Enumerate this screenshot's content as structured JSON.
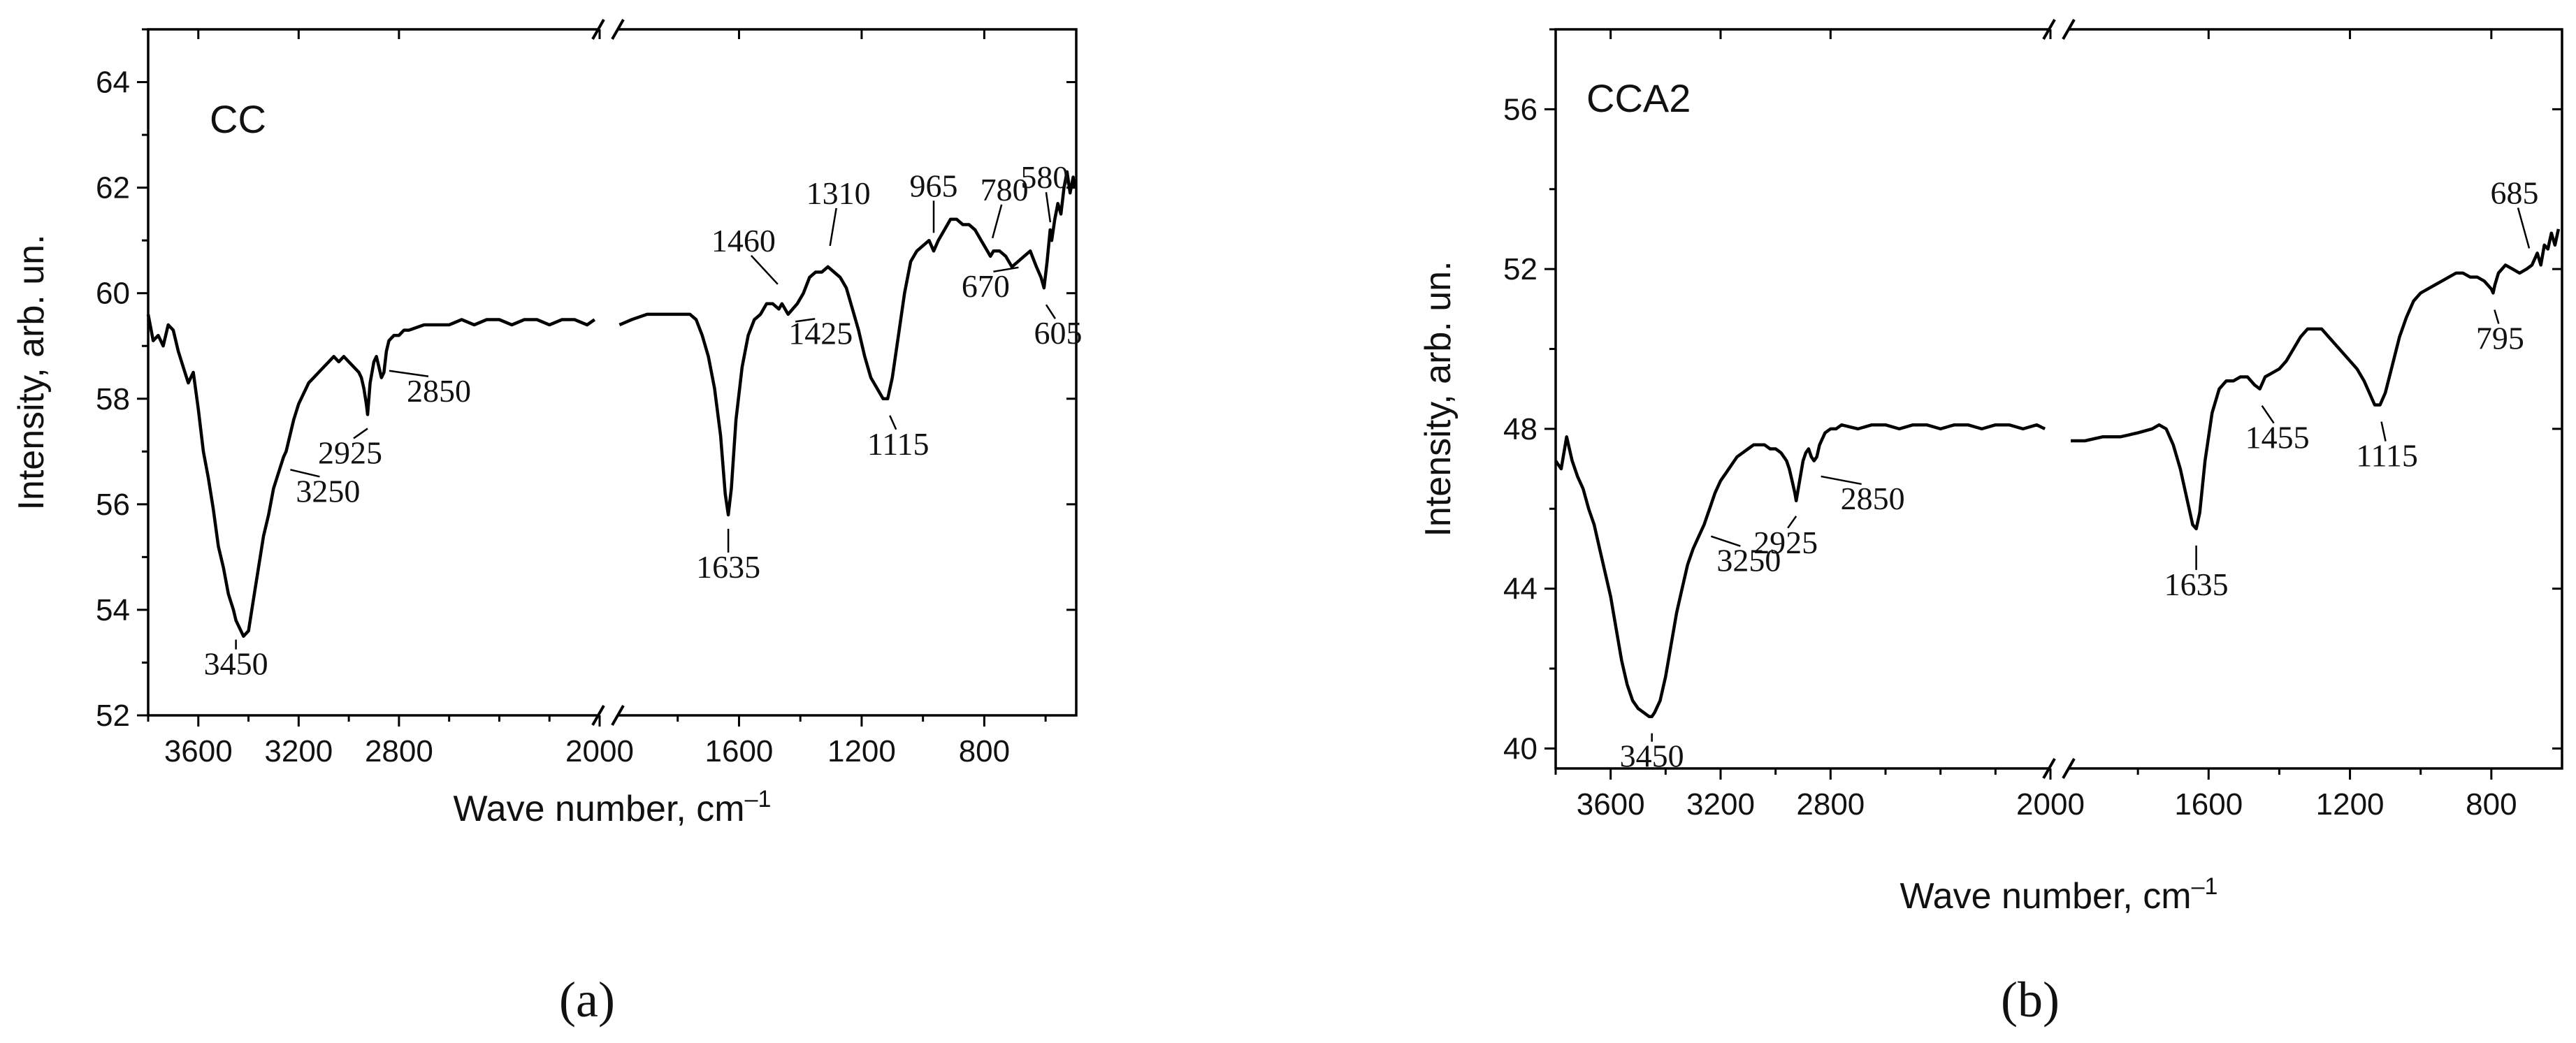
{
  "chart_data": [
    {
      "type": "line",
      "panel_name": "CC",
      "caption": "(a)",
      "xlabel": "Wave number, cm",
      "xlabel_sup": "–1",
      "ylabel": "Intensity, arb. un.",
      "ylim": [
        52,
        65
      ],
      "y_ticks": [
        52,
        54,
        56,
        58,
        60,
        62,
        64
      ],
      "x_axis_broken": true,
      "x_segment_left": {
        "xlim": [
          3800,
          2000
        ],
        "ticks": [
          3600,
          3200,
          2800,
          2000
        ]
      },
      "x_segment_right": {
        "xlim": [
          2000,
          500
        ],
        "ticks": [
          1600,
          1200,
          800
        ]
      },
      "series": [
        {
          "segment": "left",
          "x": [
            3800,
            3780,
            3760,
            3740,
            3720,
            3700,
            3680,
            3660,
            3640,
            3620,
            3600,
            3580,
            3560,
            3540,
            3520,
            3500,
            3480,
            3460,
            3450,
            3440,
            3420,
            3400,
            3380,
            3360,
            3340,
            3320,
            3300,
            3280,
            3260,
            3250,
            3240,
            3220,
            3200,
            3180,
            3160,
            3140,
            3120,
            3100,
            3080,
            3060,
            3040,
            3020,
            3000,
            2980,
            2960,
            2950,
            2940,
            2930,
            2925,
            2915,
            2900,
            2890,
            2880,
            2870,
            2860,
            2850,
            2840,
            2820,
            2800,
            2780,
            2760,
            2700,
            2650,
            2600,
            2550,
            2500,
            2450,
            2400,
            2350,
            2300,
            2250,
            2200,
            2150,
            2100,
            2050,
            2020
          ],
          "y": [
            59.6,
            59.1,
            59.2,
            59.0,
            59.4,
            59.3,
            58.9,
            58.6,
            58.3,
            58.5,
            57.8,
            57.0,
            56.5,
            55.9,
            55.2,
            54.8,
            54.3,
            54.0,
            53.8,
            53.7,
            53.5,
            53.6,
            54.2,
            54.8,
            55.4,
            55.8,
            56.3,
            56.6,
            56.9,
            57.0,
            57.2,
            57.6,
            57.9,
            58.1,
            58.3,
            58.4,
            58.5,
            58.6,
            58.7,
            58.8,
            58.7,
            58.8,
            58.7,
            58.6,
            58.5,
            58.4,
            58.2,
            57.9,
            57.7,
            58.3,
            58.7,
            58.8,
            58.6,
            58.4,
            58.5,
            58.9,
            59.1,
            59.2,
            59.2,
            59.3,
            59.3,
            59.4,
            59.4,
            59.4,
            59.5,
            59.4,
            59.5,
            59.5,
            59.4,
            59.5,
            59.5,
            59.4,
            59.5,
            59.5,
            59.4,
            59.5
          ]
        },
        {
          "segment": "right",
          "x": [
            1990,
            1950,
            1900,
            1850,
            1800,
            1760,
            1740,
            1720,
            1700,
            1680,
            1660,
            1645,
            1635,
            1625,
            1610,
            1590,
            1570,
            1550,
            1530,
            1510,
            1490,
            1470,
            1460,
            1440,
            1425,
            1410,
            1390,
            1370,
            1350,
            1330,
            1310,
            1290,
            1270,
            1250,
            1230,
            1210,
            1190,
            1170,
            1150,
            1130,
            1115,
            1100,
            1080,
            1060,
            1040,
            1020,
            1000,
            980,
            965,
            950,
            930,
            910,
            890,
            870,
            850,
            830,
            810,
            790,
            780,
            770,
            750,
            730,
            710,
            690,
            670,
            650,
            630,
            615,
            605,
            595,
            585,
            580,
            570,
            560,
            550,
            540,
            530,
            520,
            510,
            505
          ],
          "y": [
            59.4,
            59.5,
            59.6,
            59.6,
            59.6,
            59.6,
            59.5,
            59.2,
            58.8,
            58.2,
            57.3,
            56.2,
            55.8,
            56.3,
            57.6,
            58.6,
            59.2,
            59.5,
            59.6,
            59.8,
            59.8,
            59.7,
            59.8,
            59.6,
            59.7,
            59.8,
            60.0,
            60.3,
            60.4,
            60.4,
            60.5,
            60.4,
            60.3,
            60.1,
            59.7,
            59.3,
            58.8,
            58.4,
            58.2,
            58.0,
            58.0,
            58.4,
            59.2,
            60.0,
            60.6,
            60.8,
            60.9,
            61.0,
            60.8,
            61.0,
            61.2,
            61.4,
            61.4,
            61.3,
            61.3,
            61.2,
            61.0,
            60.8,
            60.7,
            60.8,
            60.8,
            60.7,
            60.5,
            60.6,
            60.7,
            60.8,
            60.5,
            60.3,
            60.1,
            60.6,
            61.2,
            61.0,
            61.4,
            61.7,
            61.5,
            62.0,
            62.3,
            61.9,
            62.2,
            62.0
          ]
        }
      ],
      "annotations": [
        {
          "text": "3450",
          "x": 3450,
          "y": 53.7
        },
        {
          "text": "3250",
          "x": 3250,
          "y": 57.0
        },
        {
          "text": "2925",
          "x": 2925,
          "y": 57.7
        },
        {
          "text": "2850",
          "x": 2850,
          "y": 58.9
        },
        {
          "text": "1635",
          "x": 1635,
          "y": 55.8
        },
        {
          "text": "1460",
          "x": 1460,
          "y": 59.8
        },
        {
          "text": "1425",
          "x": 1425,
          "y": 59.7
        },
        {
          "text": "1310",
          "x": 1310,
          "y": 60.5
        },
        {
          "text": "1115",
          "x": 1115,
          "y": 58.0
        },
        {
          "text": "965",
          "x": 965,
          "y": 60.8
        },
        {
          "text": "780",
          "x": 780,
          "y": 60.7
        },
        {
          "text": "670",
          "x": 670,
          "y": 60.7
        },
        {
          "text": "605",
          "x": 605,
          "y": 60.1
        },
        {
          "text": "580",
          "x": 580,
          "y": 61.0
        }
      ]
    },
    {
      "type": "line",
      "panel_name": "CCA2",
      "caption": "(b)",
      "xlabel": "Wave number, cm",
      "xlabel_sup": "–1",
      "ylabel": "Intensity, arb. un.",
      "ylim": [
        39.5,
        58
      ],
      "y_ticks": [
        40,
        44,
        48,
        52,
        56
      ],
      "x_axis_broken": true,
      "x_segment_left": {
        "xlim": [
          3800,
          2000
        ],
        "ticks": [
          3600,
          3200,
          2800,
          2000
        ]
      },
      "x_segment_right": {
        "xlim": [
          2000,
          600
        ],
        "ticks": [
          1600,
          1200,
          800
        ]
      },
      "series": [
        {
          "segment": "left",
          "x": [
            3800,
            3780,
            3760,
            3740,
            3720,
            3700,
            3680,
            3660,
            3640,
            3620,
            3600,
            3580,
            3560,
            3540,
            3520,
            3500,
            3480,
            3460,
            3450,
            3440,
            3420,
            3400,
            3380,
            3360,
            3340,
            3320,
            3300,
            3280,
            3260,
            3250,
            3240,
            3220,
            3200,
            3180,
            3160,
            3140,
            3120,
            3100,
            3080,
            3060,
            3040,
            3020,
            3000,
            2980,
            2960,
            2950,
            2940,
            2930,
            2925,
            2915,
            2900,
            2890,
            2880,
            2870,
            2860,
            2850,
            2840,
            2820,
            2800,
            2780,
            2760,
            2700,
            2650,
            2600,
            2550,
            2500,
            2450,
            2400,
            2350,
            2300,
            2250,
            2200,
            2150,
            2100,
            2050,
            2020
          ],
          "y": [
            47.2,
            47.0,
            47.8,
            47.2,
            46.8,
            46.5,
            46.0,
            45.6,
            45.0,
            44.4,
            43.8,
            43.0,
            42.2,
            41.6,
            41.2,
            41.0,
            40.9,
            40.8,
            40.8,
            40.9,
            41.2,
            41.8,
            42.6,
            43.4,
            44.0,
            44.6,
            45.0,
            45.3,
            45.6,
            45.8,
            46.0,
            46.4,
            46.7,
            46.9,
            47.1,
            47.3,
            47.4,
            47.5,
            47.6,
            47.6,
            47.6,
            47.5,
            47.5,
            47.4,
            47.2,
            47.0,
            46.7,
            46.4,
            46.2,
            46.6,
            47.2,
            47.4,
            47.5,
            47.3,
            47.2,
            47.3,
            47.6,
            47.9,
            48.0,
            48.0,
            48.1,
            48.0,
            48.1,
            48.1,
            48.0,
            48.1,
            48.1,
            48.0,
            48.1,
            48.1,
            48.0,
            48.1,
            48.1,
            48.0,
            48.1,
            48.0
          ]
        },
        {
          "segment": "right",
          "x": [
            1990,
            1950,
            1900,
            1850,
            1800,
            1760,
            1740,
            1720,
            1700,
            1680,
            1660,
            1645,
            1635,
            1625,
            1610,
            1590,
            1570,
            1550,
            1530,
            1510,
            1490,
            1470,
            1455,
            1440,
            1420,
            1400,
            1380,
            1360,
            1340,
            1320,
            1300,
            1280,
            1260,
            1240,
            1220,
            1200,
            1180,
            1160,
            1140,
            1130,
            1115,
            1100,
            1080,
            1060,
            1040,
            1020,
            1000,
            980,
            960,
            940,
            920,
            900,
            880,
            860,
            840,
            820,
            800,
            795,
            790,
            780,
            760,
            740,
            720,
            700,
            685,
            670,
            660,
            650,
            640,
            630,
            620,
            610
          ],
          "y": [
            47.7,
            47.7,
            47.8,
            47.8,
            47.9,
            48.0,
            48.1,
            48.0,
            47.6,
            47.0,
            46.2,
            45.6,
            45.5,
            45.9,
            47.2,
            48.4,
            49.0,
            49.2,
            49.2,
            49.3,
            49.3,
            49.1,
            49.0,
            49.3,
            49.4,
            49.5,
            49.7,
            50.0,
            50.3,
            50.5,
            50.5,
            50.5,
            50.3,
            50.1,
            49.9,
            49.7,
            49.5,
            49.2,
            48.8,
            48.6,
            48.6,
            48.9,
            49.6,
            50.3,
            50.8,
            51.2,
            51.4,
            51.5,
            51.6,
            51.7,
            51.8,
            51.9,
            51.9,
            51.8,
            51.8,
            51.7,
            51.5,
            51.4,
            51.6,
            51.9,
            52.1,
            52.0,
            51.9,
            52.0,
            52.1,
            52.4,
            52.1,
            52.6,
            52.5,
            52.9,
            52.6,
            53.0
          ]
        }
      ],
      "annotations": [
        {
          "text": "3450",
          "x": 3450,
          "y": 40.8
        },
        {
          "text": "3250",
          "x": 3250,
          "y": 45.8
        },
        {
          "text": "2925",
          "x": 2925,
          "y": 46.2
        },
        {
          "text": "2850",
          "x": 2850,
          "y": 47.3
        },
        {
          "text": "1635",
          "x": 1635,
          "y": 45.5
        },
        {
          "text": "1455",
          "x": 1455,
          "y": 49.0
        },
        {
          "text": "1115",
          "x": 1115,
          "y": 48.6
        },
        {
          "text": "795",
          "x": 795,
          "y": 51.4
        },
        {
          "text": "685",
          "x": 685,
          "y": 52.1
        }
      ]
    }
  ]
}
